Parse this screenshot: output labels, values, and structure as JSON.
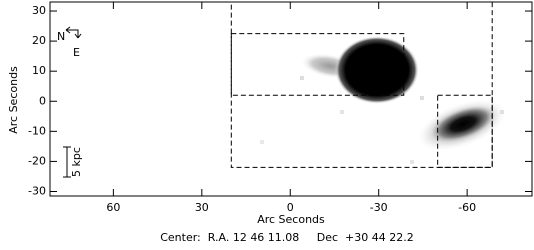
{
  "chart_data": {
    "type": "image",
    "xlabel": "Arc Seconds",
    "ylabel": "Arc Seconds",
    "footer": "Center:  R.A. 12 46 11.08     Dec  +30 44 22.2",
    "compass": {
      "north": "N",
      "east": "E"
    },
    "scale_bar": "5 kpc",
    "xlim": [
      81.5,
      -82
    ],
    "ylim": [
      -31.5,
      33
    ],
    "xticks": [
      60,
      30,
      0,
      -30,
      -60
    ],
    "yticks": [
      -30,
      -20,
      -10,
      0,
      10,
      20,
      30
    ],
    "regions": [
      {
        "x": [
          20,
          -68.5
        ],
        "y": [
          -22,
          34
        ]
      },
      {
        "x": [
          20,
          -38.5
        ],
        "y": [
          2,
          22.5
        ]
      },
      {
        "x": [
          -50,
          -68.5
        ],
        "y": [
          -22,
          2
        ]
      }
    ]
  }
}
